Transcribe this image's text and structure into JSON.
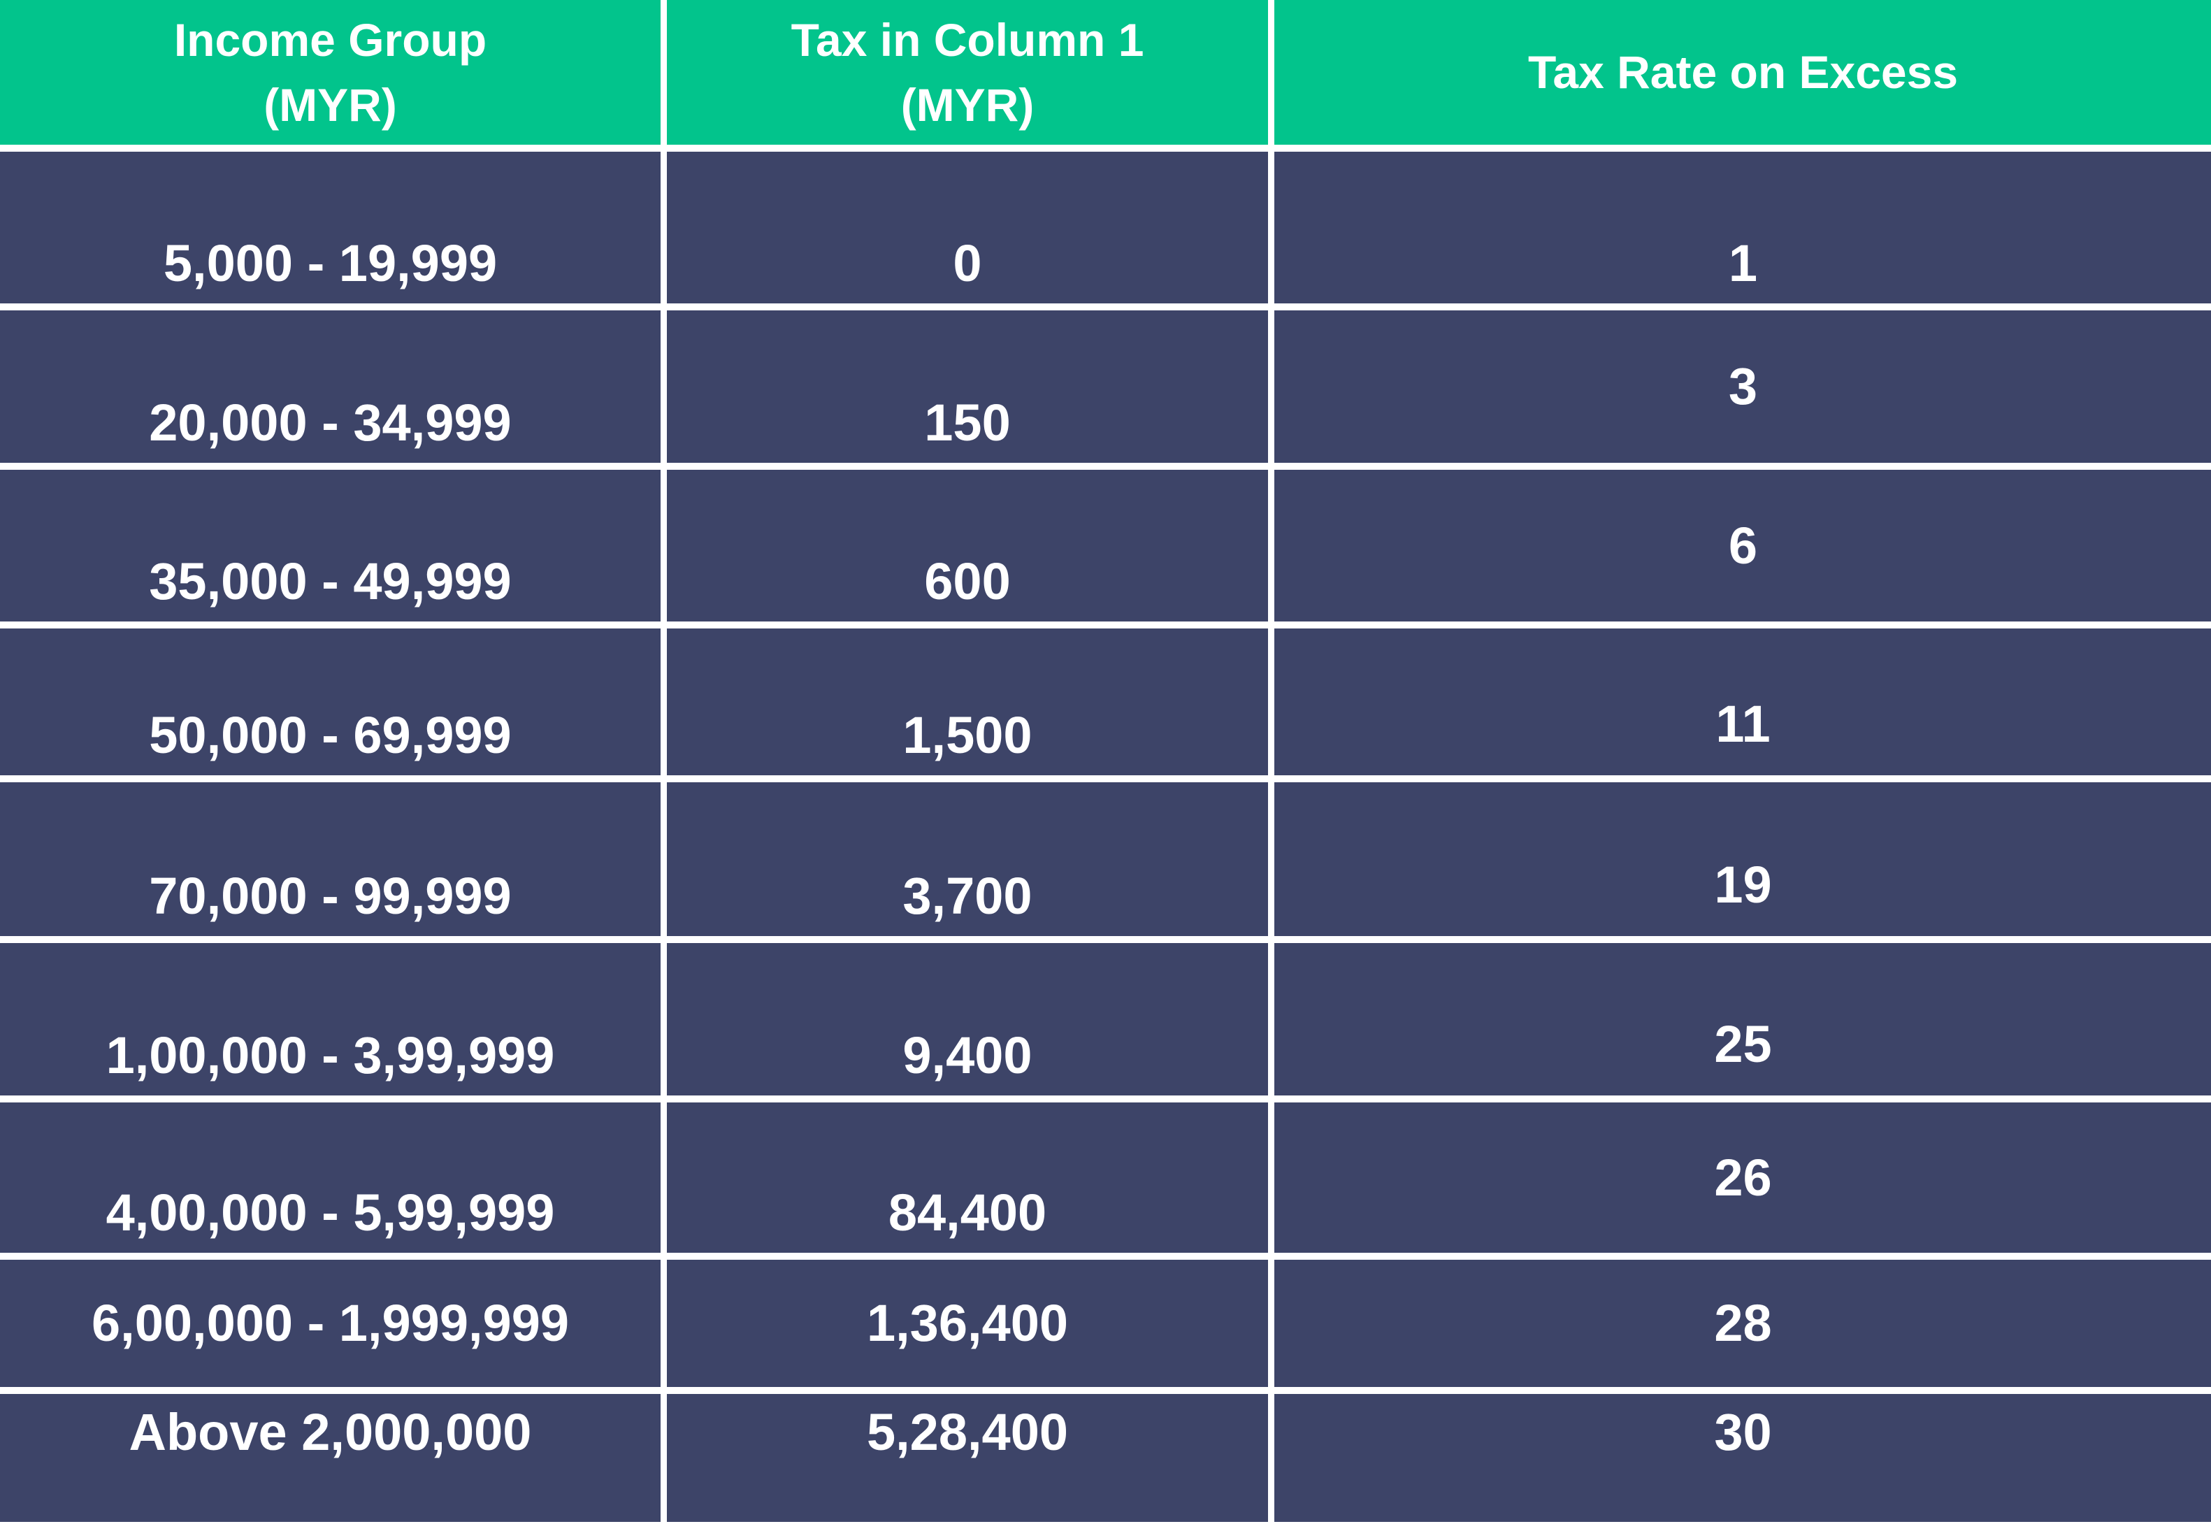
{
  "colors": {
    "header_bg": "#02C48C",
    "cell_bg": "#3D4468",
    "divider": "#FFFFFF",
    "text": "#FFFFFF"
  },
  "table": {
    "headers": [
      "Income Group\n(MYR)",
      "Tax in Column 1\n(MYR)",
      "Tax Rate on Excess"
    ],
    "rows": [
      {
        "income_group": "5,000 - 19,999",
        "tax_col1": "0",
        "rate_on_excess": "1"
      },
      {
        "income_group": "20,000 - 34,999",
        "tax_col1": "150",
        "rate_on_excess": "3"
      },
      {
        "income_group": "35,000 - 49,999",
        "tax_col1": "600",
        "rate_on_excess": "6"
      },
      {
        "income_group": "50,000 - 69,999",
        "tax_col1": "1,500",
        "rate_on_excess": "11"
      },
      {
        "income_group": "70,000 - 99,999",
        "tax_col1": "3,700",
        "rate_on_excess": "19"
      },
      {
        "income_group": "1,00,000 - 3,99,999",
        "tax_col1": "9,400",
        "rate_on_excess": "25"
      },
      {
        "income_group": "4,00,000 - 5,99,999",
        "tax_col1": "84,400",
        "rate_on_excess": "26"
      },
      {
        "income_group": "6,00,000 - 1,999,999",
        "tax_col1": "1,36,400",
        "rate_on_excess": "28"
      },
      {
        "income_group": "Above 2,000,000",
        "tax_col1": "5,28,400",
        "rate_on_excess": "30"
      }
    ]
  },
  "chart_data": {
    "type": "table",
    "title": "",
    "columns": [
      "Income Group (MYR)",
      "Tax in Column 1 (MYR)",
      "Tax Rate on Excess"
    ],
    "rows": [
      [
        "5,000 - 19,999",
        "0",
        "1"
      ],
      [
        "20,000 - 34,999",
        "150",
        "3"
      ],
      [
        "35,000 - 49,999",
        "600",
        "6"
      ],
      [
        "50,000 - 69,999",
        "1,500",
        "11"
      ],
      [
        "70,000 - 99,999",
        "3,700",
        "19"
      ],
      [
        "1,00,000 - 3,99,999",
        "9,400",
        "25"
      ],
      [
        "4,00,000 - 5,99,999",
        "84,400",
        "26"
      ],
      [
        "6,00,000 - 1,999,999",
        "1,36,400",
        "28"
      ],
      [
        "Above 2,000,000",
        "5,28,400",
        "30"
      ]
    ],
    "tax_in_column1_values": [
      0,
      150,
      600,
      1500,
      3700,
      9400,
      84400,
      136400,
      528400
    ],
    "tax_rate_on_excess_values": [
      1,
      3,
      6,
      11,
      19,
      25,
      26,
      28,
      30
    ]
  }
}
